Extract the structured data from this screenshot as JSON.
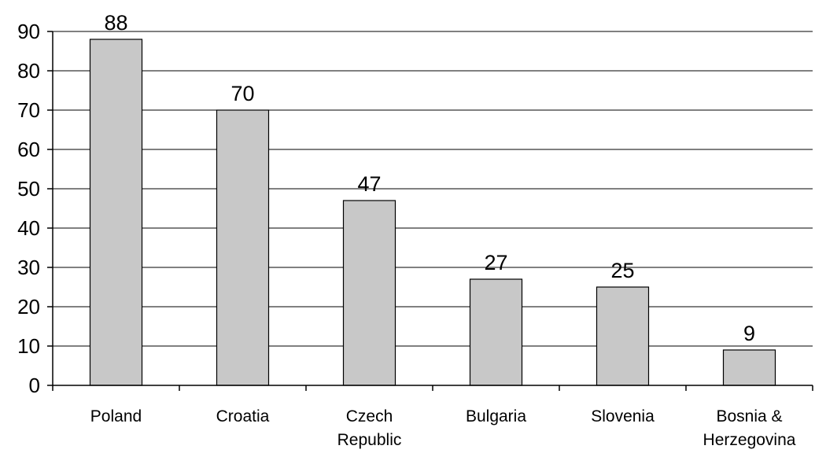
{
  "chart_data": {
    "type": "bar",
    "title": "",
    "xlabel": "",
    "ylabel": "",
    "categories": [
      "Poland",
      "Croatia",
      "Czech Republic",
      "Bulgaria",
      "Slovenia",
      "Bosnia & Herzegovina"
    ],
    "category_lines": [
      [
        "Poland"
      ],
      [
        "Croatia"
      ],
      [
        "Czech",
        "Republic"
      ],
      [
        "Bulgaria"
      ],
      [
        "Slovenia"
      ],
      [
        "Bosnia &",
        "Herzegovina"
      ]
    ],
    "values": [
      88,
      70,
      47,
      27,
      25,
      9
    ],
    "ylim": [
      0,
      90
    ],
    "yticks": [
      0,
      10,
      20,
      30,
      40,
      50,
      60,
      70,
      80,
      90
    ],
    "grid": true,
    "legend": "none",
    "colors": {
      "bar_fill": "#c8c8c8",
      "bar_stroke": "#000000",
      "grid": "#000000"
    }
  }
}
